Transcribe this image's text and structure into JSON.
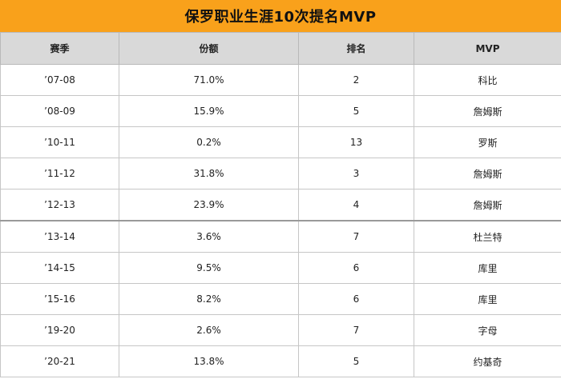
{
  "title": "保罗职业生涯10次提名MVP",
  "headers": {
    "season": "赛季",
    "share": "份额",
    "rank": "排名",
    "mvp": "MVP"
  },
  "rows": [
    {
      "season": "’07-08",
      "share": "71.0%",
      "rank": "2",
      "mvp": "科比"
    },
    {
      "season": "’08-09",
      "share": "15.9%",
      "rank": "5",
      "mvp": "詹姆斯"
    },
    {
      "season": "’10-11",
      "share": "0.2%",
      "rank": "13",
      "mvp": "罗斯"
    },
    {
      "season": "’11-12",
      "share": "31.8%",
      "rank": "3",
      "mvp": "詹姆斯"
    },
    {
      "season": "’12-13",
      "share": "23.9%",
      "rank": "4",
      "mvp": "詹姆斯"
    },
    {
      "season": "’13-14",
      "share": "3.6%",
      "rank": "7",
      "mvp": "杜兰特"
    },
    {
      "season": "’14-15",
      "share": "9.5%",
      "rank": "6",
      "mvp": "库里"
    },
    {
      "season": "’15-16",
      "share": "8.2%",
      "rank": "6",
      "mvp": "库里"
    },
    {
      "season": "’19-20",
      "share": "2.6%",
      "rank": "7",
      "mvp": "字母"
    },
    {
      "season": "’20-21",
      "share": "13.8%",
      "rank": "5",
      "mvp": "约基奇"
    }
  ],
  "colors": {
    "title_bg": "#f9a11b",
    "header_bg": "#d9d9d9"
  }
}
